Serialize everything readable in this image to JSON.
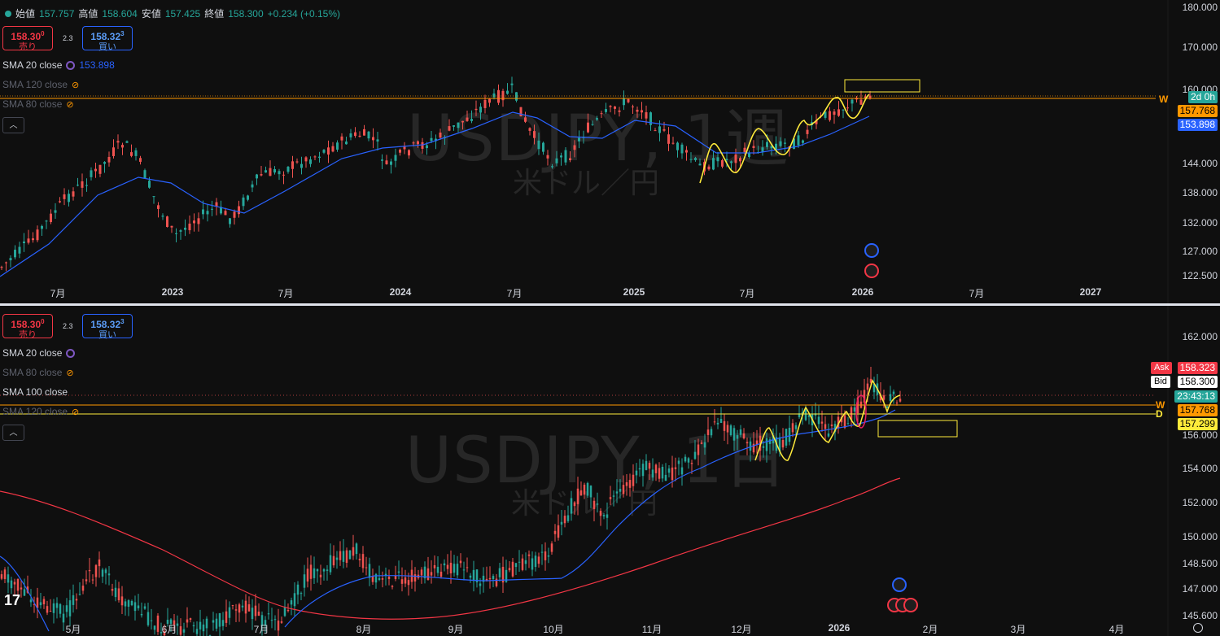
{
  "header": {
    "ohlc": {
      "open_label": "始値",
      "open": "157.757",
      "high_label": "高値",
      "high": "158.604",
      "low_label": "安値",
      "low": "157.425",
      "close_label": "終値",
      "close": "158.300",
      "change": "+0.234 (+0.15%)"
    }
  },
  "trade": {
    "sell_price": "158.30",
    "sell_sup": "0",
    "sell_label": "売り",
    "buy_price": "158.32",
    "buy_sup": "3",
    "buy_label": "買い",
    "spread": "2.3"
  },
  "weekly": {
    "watermark": "USDJPY, 1週",
    "watermark_sub": "米ドル／円",
    "indicators": [
      {
        "label": "SMA 20 close",
        "value": "153.898"
      },
      {
        "label": "SMA 120 close"
      },
      {
        "label": "SMA 80 close"
      }
    ],
    "price_axis": [
      "180.000",
      "170.000",
      "160.000",
      "144.000",
      "138.000",
      "132.000",
      "127.000",
      "122.500"
    ],
    "time_axis": [
      "7月",
      "2023",
      "7月",
      "2024",
      "7月",
      "2025",
      "7月",
      "2026",
      "7月",
      "2027"
    ],
    "tags": {
      "countdown": "2d 0h",
      "level": "157.768",
      "sma": "153.898",
      "level_letter": "W"
    }
  },
  "daily": {
    "watermark": "USDJPY, 1日",
    "watermark_sub": "米ドル／円",
    "indicators": [
      {
        "label": "SMA 20 close"
      },
      {
        "label": "SMA 80 close"
      },
      {
        "label": "SMA 100 close"
      },
      {
        "label": "SMA 120 close"
      }
    ],
    "price_axis": [
      "162.000",
      "156.000",
      "154.000",
      "152.000",
      "150.000",
      "148.500",
      "147.000",
      "145.600"
    ],
    "time_axis": [
      "5月",
      "6月",
      "7月",
      "8月",
      "9月",
      "10月",
      "11月",
      "12月",
      "2026",
      "2月",
      "3月",
      "4月"
    ],
    "tags": {
      "ask_label": "Ask",
      "ask": "158.323",
      "bid_label": "Bid",
      "bid": "158.300",
      "countdown": "23:43:13",
      "level_w": "157.768",
      "level_d": "157.299",
      "letter_w": "W",
      "letter_d": "D"
    }
  },
  "colors": {
    "up": "#26a69a",
    "down": "#ef5350",
    "sma20": "#2962ff",
    "sma100": "#f23645",
    "level_w": "#ff9800",
    "level_d": "#ffeb3b",
    "drawing": "#ffeb3b"
  }
}
